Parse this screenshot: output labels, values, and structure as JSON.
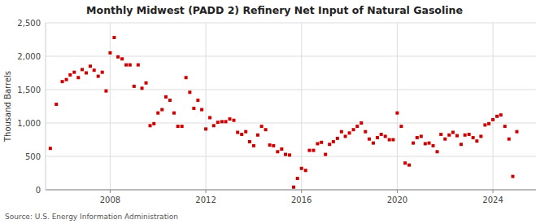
{
  "chart_data": {
    "type": "scatter",
    "title": "Monthly Midwest (PADD 2) Refinery Net Input of Natural Gasoline",
    "ylabel": "Thousand Barrels",
    "annotations": [
      "Source: U.S. Energy Information Administration"
    ],
    "color": "#cc0000",
    "marker": "square",
    "grid": true,
    "xlim": [
      2005.3,
      2025.8
    ],
    "xticks": [
      2008,
      2012,
      2016,
      2020,
      2024
    ],
    "ylim": [
      0,
      2500
    ],
    "yticks": [
      0,
      500,
      {
        "value": 1000,
        "label": "1,000"
      },
      {
        "value": 1500,
        "label": "1,500"
      },
      {
        "value": 2000,
        "label": "2,000"
      },
      {
        "value": 2500,
        "label": "2,500"
      }
    ],
    "x": [
      2005.5,
      2005.75,
      2006.0,
      2006.17,
      2006.33,
      2006.5,
      2006.67,
      2006.83,
      2007.0,
      2007.17,
      2007.33,
      2007.5,
      2007.67,
      2007.83,
      2008.0,
      2008.17,
      2008.33,
      2008.5,
      2008.67,
      2008.83,
      2009.0,
      2009.17,
      2009.33,
      2009.5,
      2009.67,
      2009.83,
      2010.0,
      2010.17,
      2010.33,
      2010.5,
      2010.67,
      2010.83,
      2011.0,
      2011.17,
      2011.33,
      2011.5,
      2011.67,
      2011.83,
      2012.0,
      2012.17,
      2012.33,
      2012.5,
      2012.67,
      2012.83,
      2013.0,
      2013.17,
      2013.33,
      2013.5,
      2013.67,
      2013.83,
      2014.0,
      2014.17,
      2014.33,
      2014.5,
      2014.67,
      2014.83,
      2015.0,
      2015.17,
      2015.33,
      2015.5,
      2015.67,
      2015.83,
      2016.0,
      2016.17,
      2016.33,
      2016.5,
      2016.67,
      2016.83,
      2017.0,
      2017.17,
      2017.33,
      2017.5,
      2017.67,
      2017.83,
      2018.0,
      2018.17,
      2018.33,
      2018.5,
      2018.67,
      2018.83,
      2019.0,
      2019.17,
      2019.33,
      2019.5,
      2019.67,
      2019.83,
      2020.0,
      2020.17,
      2020.33,
      2020.5,
      2020.67,
      2020.83,
      2021.0,
      2021.17,
      2021.33,
      2021.5,
      2021.67,
      2021.83,
      2022.0,
      2022.17,
      2022.33,
      2022.5,
      2022.67,
      2022.83,
      2023.0,
      2023.17,
      2023.33,
      2023.5,
      2023.67,
      2023.83,
      2024.0,
      2024.17,
      2024.33,
      2024.5,
      2024.67,
      2024.83,
      2025.0
    ],
    "values": [
      620,
      1280,
      1620,
      1650,
      1720,
      1760,
      1680,
      1800,
      1750,
      1850,
      1790,
      1700,
      1760,
      1480,
      2050,
      2280,
      1990,
      1960,
      1870,
      1870,
      1550,
      1870,
      1520,
      1600,
      960,
      990,
      1150,
      1200,
      1390,
      1340,
      1150,
      950,
      950,
      1680,
      1460,
      1220,
      1340,
      1200,
      910,
      1080,
      960,
      1010,
      1020,
      1020,
      1060,
      1040,
      860,
      830,
      870,
      720,
      660,
      820,
      950,
      900,
      670,
      660,
      570,
      610,
      530,
      520,
      40,
      170,
      320,
      290,
      590,
      590,
      690,
      710,
      530,
      680,
      720,
      770,
      870,
      800,
      850,
      900,
      950,
      1000,
      870,
      760,
      700,
      780,
      830,
      800,
      750,
      750,
      1150,
      950,
      400,
      370,
      700,
      780,
      800,
      690,
      700,
      660,
      570,
      830,
      760,
      820,
      860,
      810,
      680,
      820,
      830,
      780,
      730,
      800,
      970,
      990,
      1050,
      1100,
      1120,
      950,
      760,
      200,
      870
    ]
  }
}
